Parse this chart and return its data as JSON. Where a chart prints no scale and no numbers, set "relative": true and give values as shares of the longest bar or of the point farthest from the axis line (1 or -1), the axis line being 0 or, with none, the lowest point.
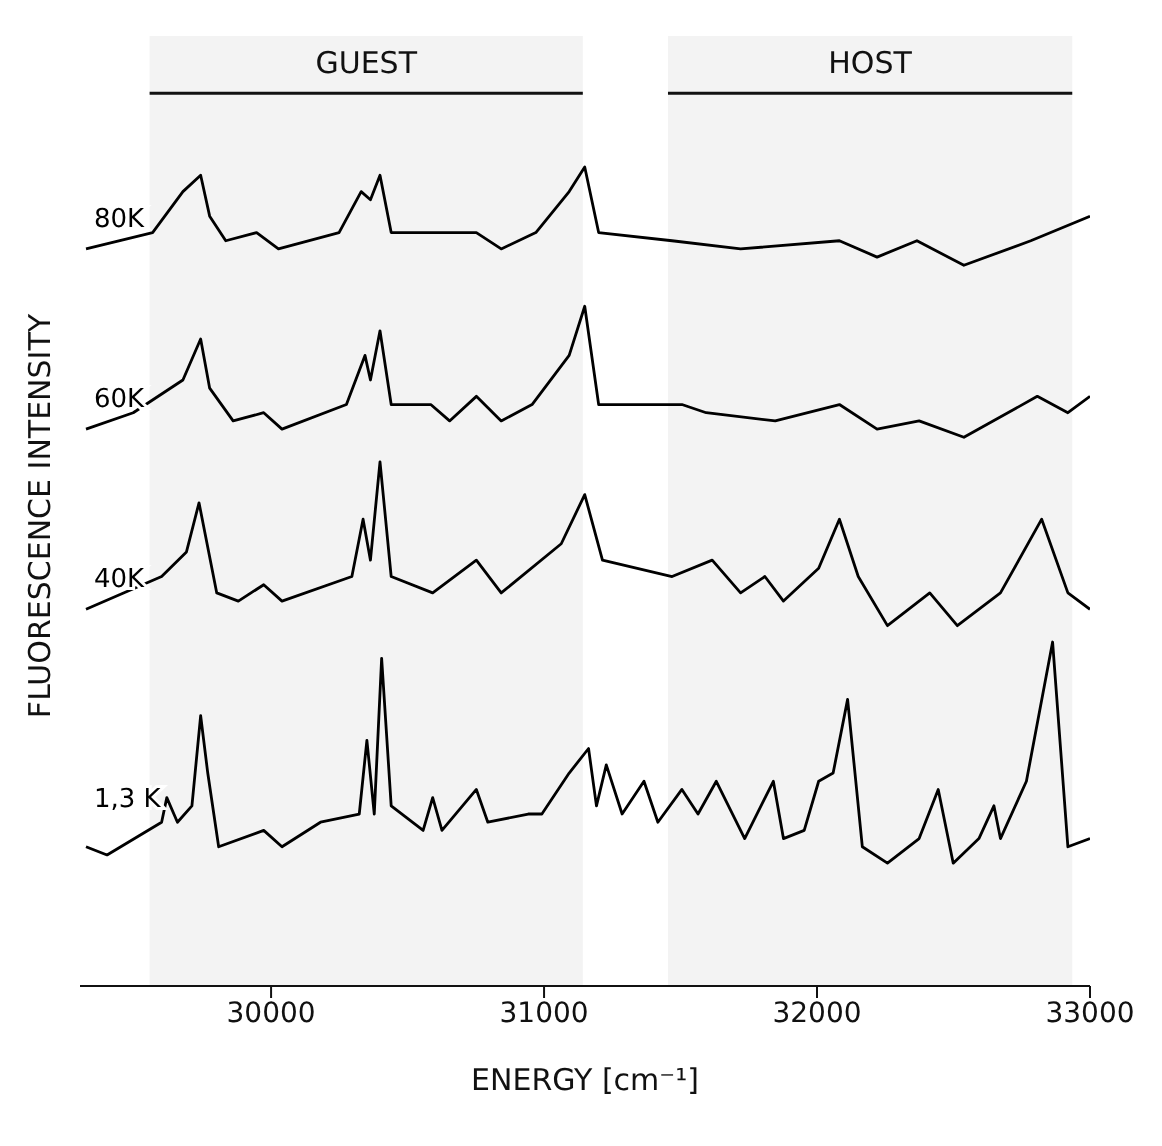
{
  "chart_data": {
    "type": "line",
    "relative": true,
    "xlabel": "ENERGY [cm⁻¹]",
    "ylabel": "FLUORESCENCE INTENSITY",
    "xlim": [
      29300,
      33000
    ],
    "xticks": [
      30000,
      31000,
      32000,
      33000
    ],
    "legend": false,
    "grid": false,
    "marker": "none",
    "line_style": "solid",
    "bands": [
      {
        "axis": "x",
        "from": 29555,
        "to": 31142,
        "label": "GUEST"
      },
      {
        "axis": "x",
        "from": 31454,
        "to": 32935,
        "label": "HOST"
      }
    ],
    "series": [
      {
        "name": "80K",
        "color": "#000000",
        "x": [
          29322,
          29566,
          29677,
          29742,
          29775,
          29834,
          29947,
          30027,
          30249,
          30330,
          30364,
          30399,
          30440,
          30592,
          30752,
          30843,
          30970,
          31092,
          31149,
          31200,
          31469,
          31720,
          32082,
          32220,
          32366,
          32538,
          32783,
          33000
        ],
        "values": [
          0.9,
          0.92,
          0.97,
          0.99,
          0.94,
          0.91,
          0.92,
          0.9,
          0.92,
          0.97,
          0.96,
          0.99,
          0.92,
          0.92,
          0.92,
          0.9,
          0.92,
          0.97,
          1.0,
          0.92,
          0.91,
          0.9,
          0.91,
          0.89,
          0.91,
          0.88,
          0.91,
          0.94
        ]
      },
      {
        "name": "60K",
        "color": "#000000",
        "x": [
          29322,
          29495,
          29677,
          29742,
          29775,
          29861,
          29973,
          30040,
          30276,
          30344,
          30364,
          30399,
          30440,
          30585,
          30654,
          30752,
          30843,
          30956,
          31092,
          31149,
          31200,
          31505,
          31594,
          31847,
          32082,
          32220,
          32374,
          32538,
          32807,
          32919,
          33000
        ],
        "values": [
          0.68,
          0.7,
          0.74,
          0.79,
          0.73,
          0.69,
          0.7,
          0.68,
          0.71,
          0.77,
          0.74,
          0.8,
          0.71,
          0.71,
          0.69,
          0.72,
          0.69,
          0.71,
          0.77,
          0.83,
          0.71,
          0.71,
          0.7,
          0.69,
          0.71,
          0.68,
          0.69,
          0.67,
          0.72,
          0.7,
          0.72
        ]
      },
      {
        "name": "40K",
        "color": "#000000",
        "x": [
          29322,
          29599,
          29690,
          29736,
          29801,
          29880,
          29973,
          30040,
          30296,
          30337,
          30364,
          30399,
          30440,
          30592,
          30752,
          30843,
          31063,
          31149,
          31214,
          31469,
          31616,
          31720,
          31809,
          31877,
          32006,
          32082,
          32151,
          32258,
          32413,
          32514,
          32672,
          32823,
          32919,
          33000
        ],
        "values": [
          0.46,
          0.5,
          0.53,
          0.59,
          0.48,
          0.47,
          0.49,
          0.47,
          0.5,
          0.57,
          0.52,
          0.64,
          0.5,
          0.48,
          0.52,
          0.48,
          0.54,
          0.6,
          0.52,
          0.5,
          0.52,
          0.48,
          0.5,
          0.47,
          0.51,
          0.57,
          0.5,
          0.44,
          0.48,
          0.44,
          0.48,
          0.57,
          0.48,
          0.46
        ]
      },
      {
        "name": "1,3 K",
        "color": "#000000",
        "x": [
          29322,
          29399,
          29599,
          29618,
          29657,
          29710,
          29742,
          29768,
          29808,
          29973,
          30040,
          30181,
          30323,
          30351,
          30378,
          30405,
          30440,
          30557,
          30592,
          30626,
          30752,
          30794,
          30942,
          30992,
          31092,
          31163,
          31192,
          31228,
          31286,
          31366,
          31417,
          31505,
          31564,
          31631,
          31735,
          31840,
          31877,
          31953,
          32006,
          32059,
          32112,
          32166,
          32258,
          32374,
          32444,
          32499,
          32593,
          32648,
          32672,
          32767,
          32863,
          32919,
          33000
        ],
        "values": [
          0.17,
          0.16,
          0.2,
          0.23,
          0.2,
          0.22,
          0.33,
          0.26,
          0.17,
          0.19,
          0.17,
          0.2,
          0.21,
          0.3,
          0.21,
          0.4,
          0.22,
          0.19,
          0.23,
          0.19,
          0.24,
          0.2,
          0.21,
          0.21,
          0.26,
          0.29,
          0.22,
          0.27,
          0.21,
          0.25,
          0.2,
          0.24,
          0.21,
          0.25,
          0.18,
          0.25,
          0.18,
          0.19,
          0.25,
          0.26,
          0.35,
          0.17,
          0.15,
          0.18,
          0.24,
          0.15,
          0.18,
          0.22,
          0.18,
          0.25,
          0.42,
          0.17,
          0.18
        ]
      }
    ]
  }
}
